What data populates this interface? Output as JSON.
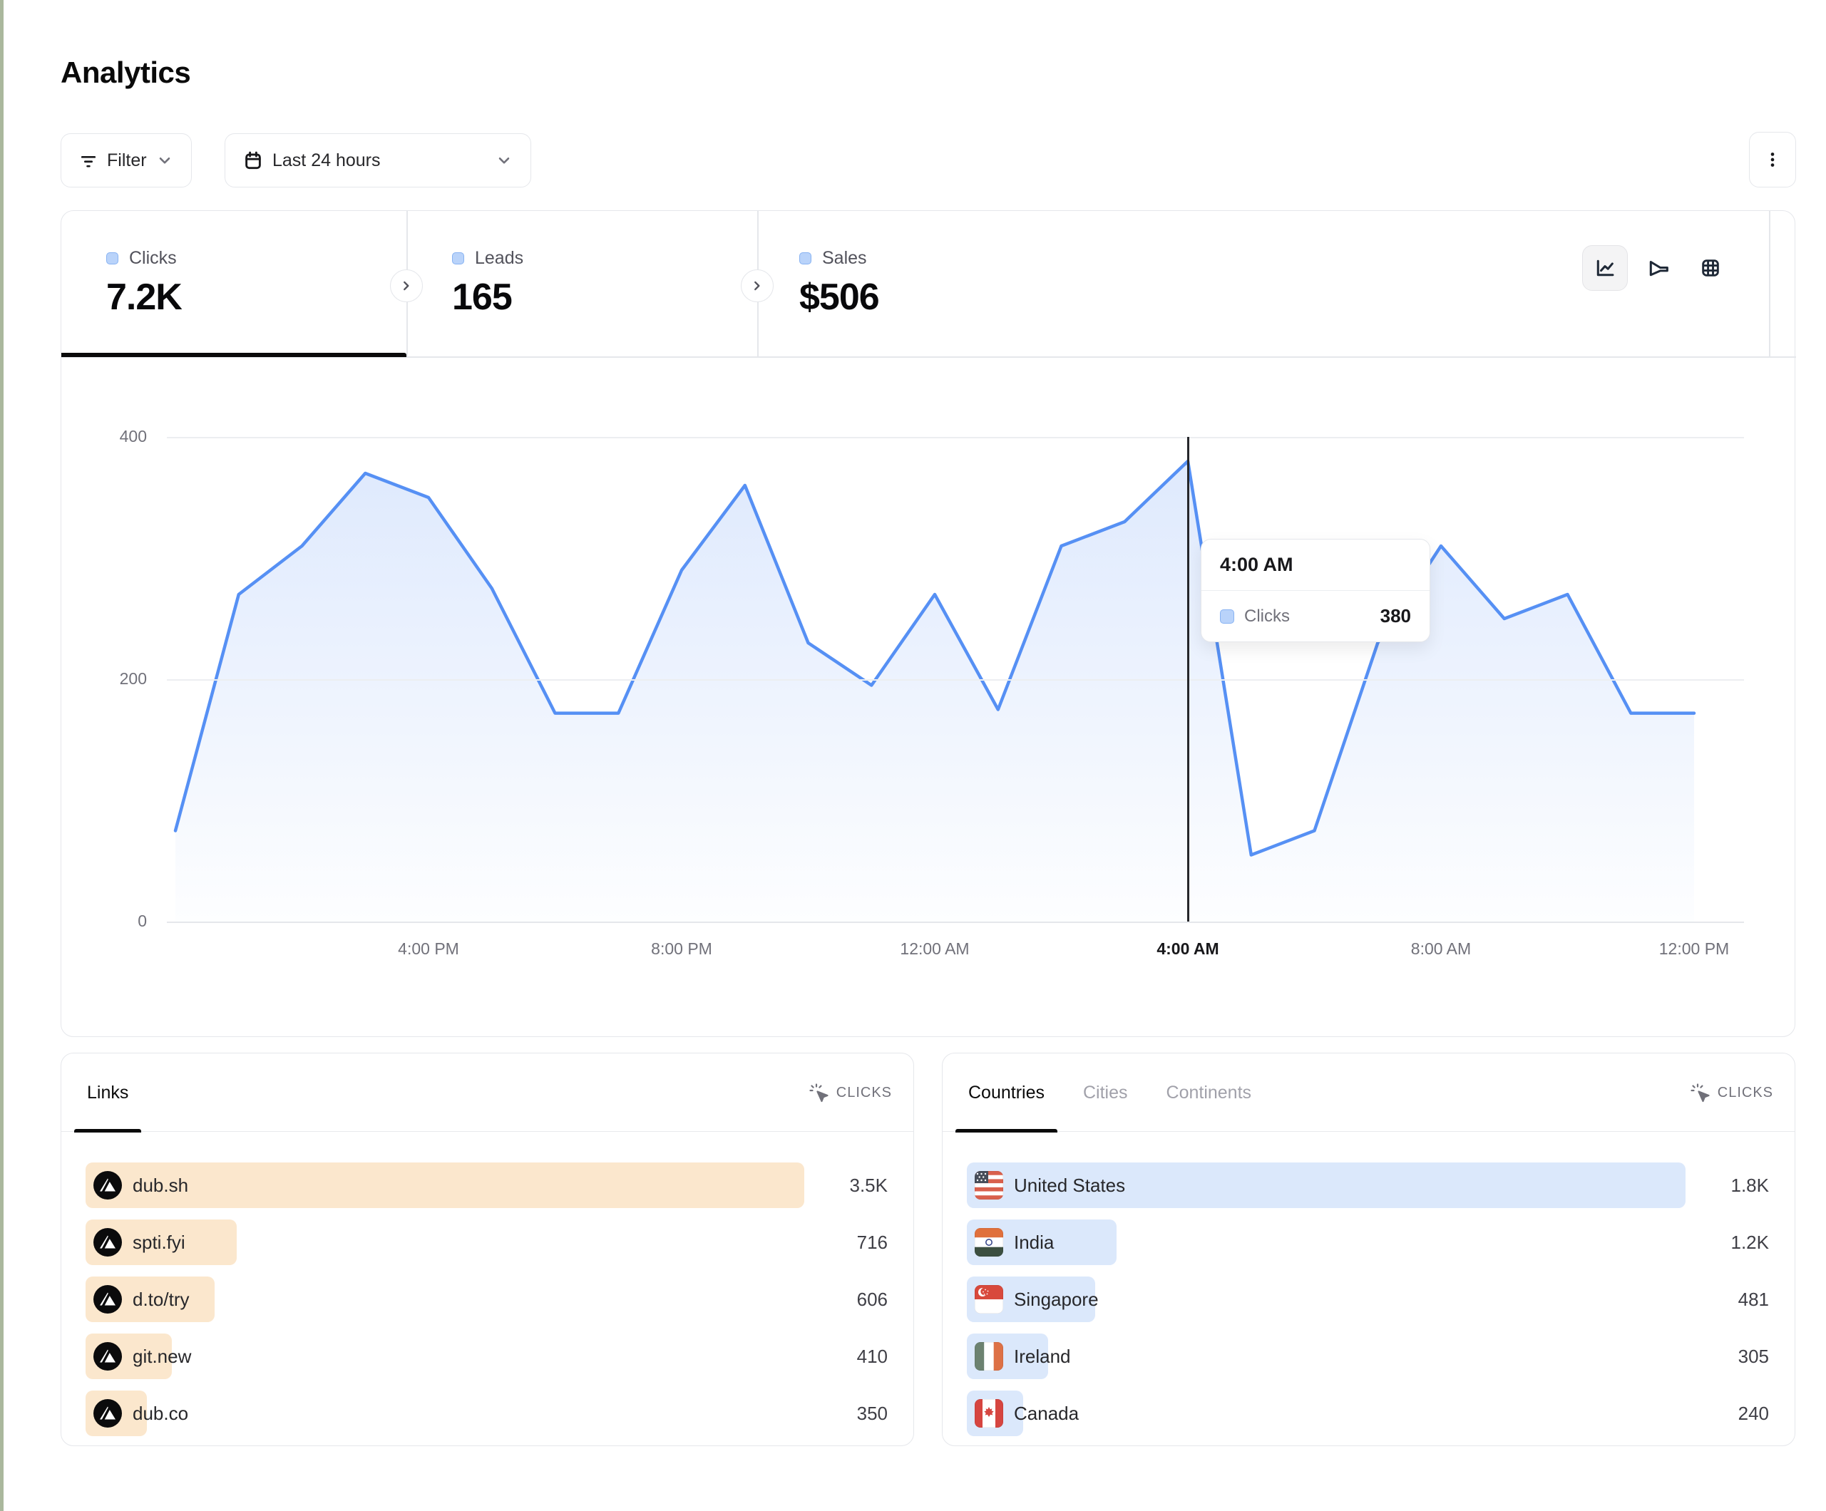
{
  "page": {
    "title": "Analytics"
  },
  "toolbar": {
    "filter_label": "Filter",
    "date_range_label": "Last 24 hours"
  },
  "stats": {
    "tabs": [
      {
        "label": "Clicks",
        "value": "7.2K",
        "active": true
      },
      {
        "label": "Leads",
        "value": "165",
        "active": false
      },
      {
        "label": "Sales",
        "value": "$506",
        "active": false
      }
    ]
  },
  "chart_data": {
    "type": "area",
    "series": [
      {
        "name": "Clicks",
        "values": [
          75,
          270,
          310,
          370,
          350,
          275,
          172,
          172,
          290,
          360,
          230,
          195,
          270,
          175,
          310,
          330,
          380,
          55,
          75,
          230,
          310,
          250,
          270,
          172,
          172
        ]
      }
    ],
    "x": [
      "12:00 PM",
      "1:00 PM",
      "2:00 PM",
      "3:00 PM",
      "4:00 PM",
      "5:00 PM",
      "6:00 PM",
      "7:00 PM",
      "8:00 PM",
      "9:00 PM",
      "10:00 PM",
      "11:00 PM",
      "12:00 AM",
      "1:00 AM",
      "2:00 AM",
      "3:00 AM",
      "4:00 AM",
      "5:00 AM",
      "6:00 AM",
      "7:00 AM",
      "8:00 AM",
      "9:00 AM",
      "10:00 AM",
      "11:00 AM",
      "12:00 PM"
    ],
    "x_axis_ticks": [
      "4:00 PM",
      "8:00 PM",
      "12:00 AM",
      "4:00 AM",
      "8:00 AM",
      "12:00 PM"
    ],
    "highlighted_tick": "4:00 AM",
    "y_axis_ticks": [
      "400",
      "200",
      "0"
    ],
    "ylim": [
      0,
      400
    ],
    "grid": "horizontal",
    "legend_position": "none",
    "title": "",
    "xlabel": "",
    "ylabel": "",
    "highlighted_point": {
      "x_label": "4:00 AM",
      "index": 16,
      "value": 380
    },
    "tooltip": {
      "title": "4:00 AM",
      "series": "Clicks",
      "value": "380"
    }
  },
  "links_panel": {
    "tab_label": "Links",
    "metric_label": "CLICKS",
    "rows": [
      {
        "label": "dub.sh",
        "value": "3.5K",
        "bar_pct": 100
      },
      {
        "label": "spti.fyi",
        "value": "716",
        "bar_pct": 21
      },
      {
        "label": "d.to/try",
        "value": "606",
        "bar_pct": 18
      },
      {
        "label": "git.new",
        "value": "410",
        "bar_pct": 12
      },
      {
        "label": "dub.co",
        "value": "350",
        "bar_pct": 8.5
      }
    ]
  },
  "geo_panel": {
    "tabs": [
      "Countries",
      "Cities",
      "Continents"
    ],
    "active_tab": "Countries",
    "metric_label": "CLICKS",
    "rows": [
      {
        "label": "United States",
        "value": "1.8K",
        "flag": "us",
        "bar_pct": 100
      },
      {
        "label": "India",
        "value": "1.2K",
        "flag": "in",
        "bar_pct": 20.8
      },
      {
        "label": "Singapore",
        "value": "481",
        "flag": "sg",
        "bar_pct": 17.9
      },
      {
        "label": "Ireland",
        "value": "305",
        "flag": "ie",
        "bar_pct": 11.3
      },
      {
        "label": "Canada",
        "value": "240",
        "flag": "ca",
        "bar_pct": 7.8
      }
    ]
  },
  "colors": {
    "line": "#5690f4",
    "area_top": "rgba(91,146,245,0.20)",
    "area_bottom": "rgba(91,146,245,0.01)",
    "links_bar": "#fbe7cd",
    "geo_bar": "#dbe8fb",
    "chip_bg": "#b9d3fa",
    "chip_border": "#87b2f2",
    "crosshair": "#26272b"
  }
}
